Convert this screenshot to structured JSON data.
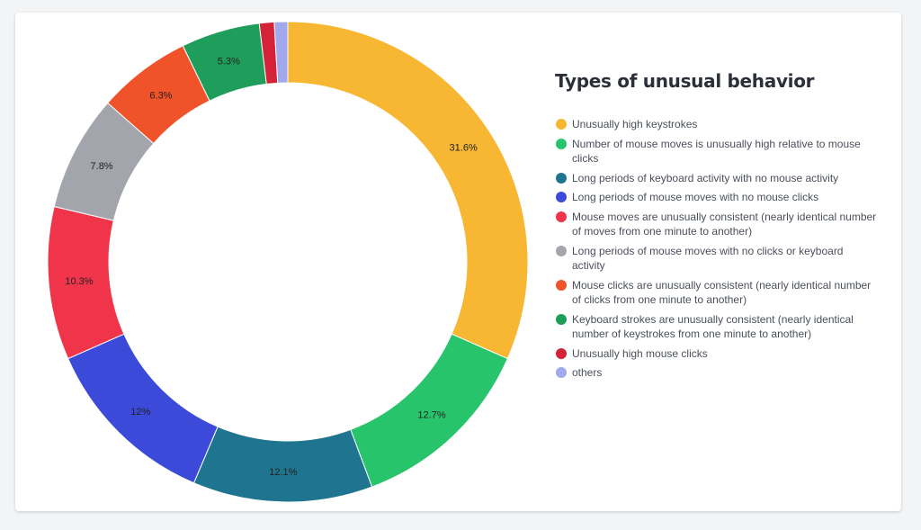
{
  "chart_data": {
    "type": "pie",
    "style": "donut",
    "title": "Types of unusual behavior",
    "legend_position": "right",
    "slices": [
      {
        "label": "Unusually high keystrokes",
        "value": 31.6,
        "display": "31.6%",
        "color": "#f7b733"
      },
      {
        "label": "Number of mouse moves is unusually high relative to mouse clicks",
        "value": 12.7,
        "display": "12.7%",
        "color": "#27c46b"
      },
      {
        "label": "Long periods of keyboard activity with no mouse activity",
        "value": 12.1,
        "display": "12.1%",
        "color": "#1f7590"
      },
      {
        "label": "Long periods of mouse moves with no mouse clicks",
        "value": 12.0,
        "display": "12%",
        "color": "#3b4ad9"
      },
      {
        "label": "Mouse moves are unusually consistent (nearly identical number of moves from one minute to another)",
        "value": 10.3,
        "display": "10.3%",
        "color": "#f0344a"
      },
      {
        "label": "Long periods of mouse moves with no clicks or keyboard activity",
        "value": 7.8,
        "display": "7.8%",
        "color": "#a3a5ad"
      },
      {
        "label": "Mouse clicks are unusually consistent (nearly identical number of clicks from one minute to another)",
        "value": 6.3,
        "display": "6.3%",
        "color": "#f0522a"
      },
      {
        "label": "Keyboard strokes are unusually consistent (nearly identical number of keystrokes from one minute to another)",
        "value": 5.3,
        "display": "5.3%",
        "color": "#1e9e5a"
      },
      {
        "label": "Unusually high mouse clicks",
        "value": 1.0,
        "display": "",
        "color": "#d42338"
      },
      {
        "label": "others",
        "value": 0.9,
        "display": "",
        "color": "#a1a8ec"
      }
    ]
  }
}
